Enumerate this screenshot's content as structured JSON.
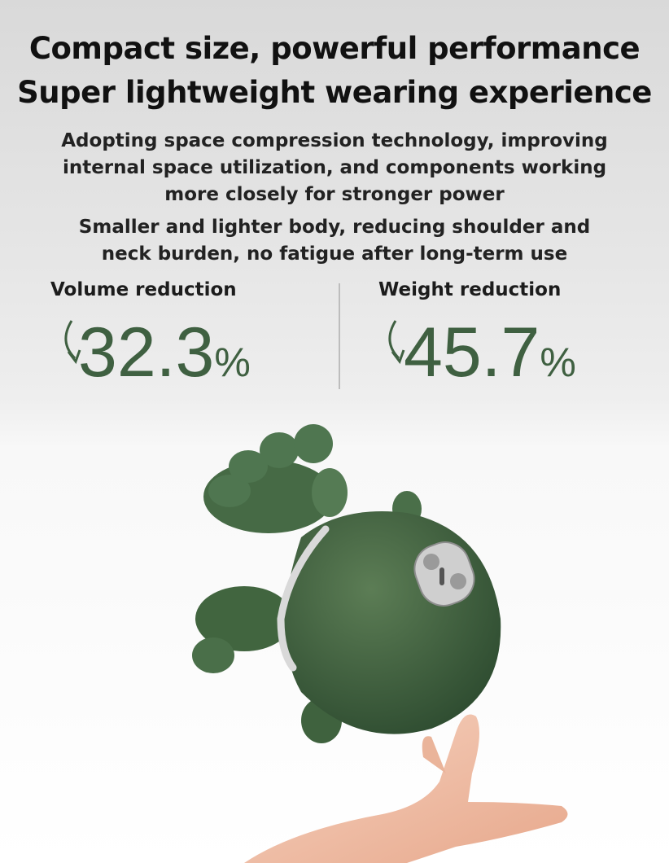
{
  "headline": [
    "Compact size, powerful performance",
    "Super lightweight wearing experience"
  ],
  "paragraphs": [
    [
      "Adopting space compression technology, improving",
      "internal space utilization, and components working",
      "more closely for stronger power"
    ],
    [
      "Smaller and lighter body, reducing shoulder and",
      "neck burden, no fatigue after long-term use"
    ]
  ],
  "stats": [
    {
      "label": "Volume reduction",
      "value": "32.3",
      "unit": "%"
    },
    {
      "label": "Weight reduction",
      "value": "45.7",
      "unit": "%"
    }
  ]
}
